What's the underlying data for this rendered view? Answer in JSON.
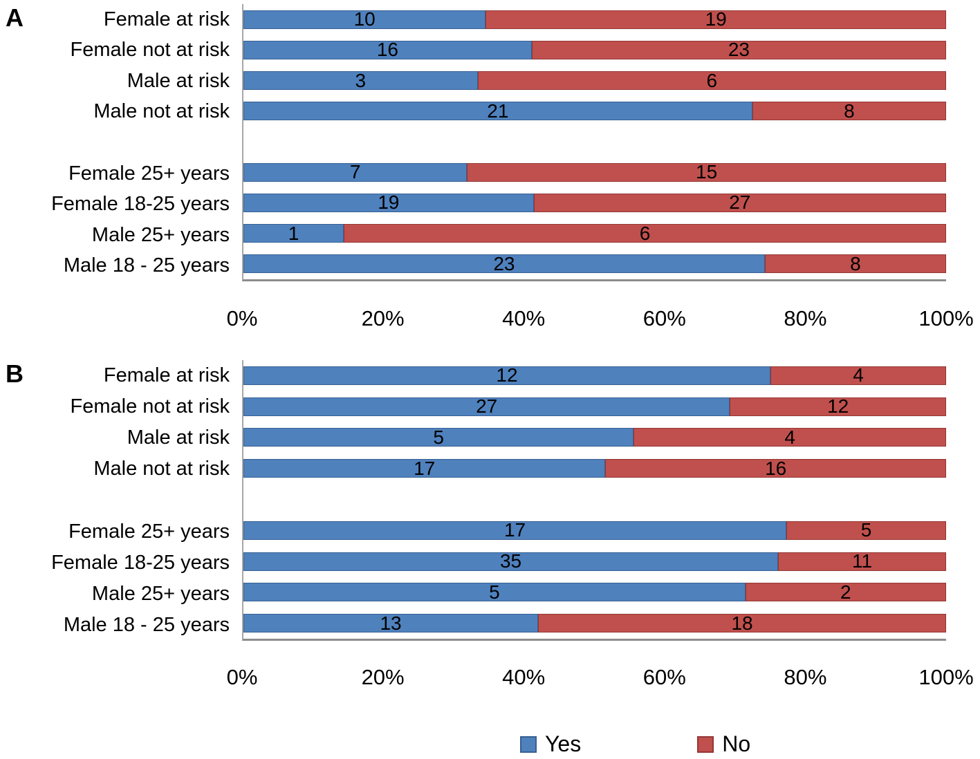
{
  "colors": {
    "yes_fill": "#4F81BD",
    "yes_border": "#366092",
    "no_fill": "#C0504D",
    "no_border": "#943634",
    "axis_line": "#A6A6A6",
    "value_text": "#000000"
  },
  "legend": {
    "position": "bottom",
    "items": [
      {
        "label": "Yes",
        "color": "#4F81BD",
        "border": "#366092"
      },
      {
        "label": "No",
        "color": "#C0504D",
        "border": "#943634"
      }
    ]
  },
  "chart_data": [
    {
      "type": "bar",
      "panel_label": "A",
      "orientation": "horizontal",
      "stacking": "percent",
      "title": "",
      "xlabel": "",
      "ylabel": "",
      "xlim": [
        0,
        100
      ],
      "grid": false,
      "categories": [
        "Female at risk",
        "Female not at risk",
        "Male at risk",
        "Male not at risk",
        "",
        "Female 25+ years",
        "Female 18-25 years",
        "Male 25+ years",
        "Male 18 - 25 years"
      ],
      "series": [
        {
          "name": "Yes",
          "values": [
            10,
            16,
            3,
            21,
            null,
            7,
            19,
            1,
            23
          ]
        },
        {
          "name": "No",
          "values": [
            19,
            23,
            6,
            8,
            null,
            15,
            27,
            6,
            8
          ]
        }
      ],
      "x_ticks": [
        "0%",
        "20%",
        "40%",
        "60%",
        "80%",
        "100%"
      ]
    },
    {
      "type": "bar",
      "panel_label": "B",
      "orientation": "horizontal",
      "stacking": "percent",
      "title": "",
      "xlabel": "",
      "ylabel": "",
      "xlim": [
        0,
        100
      ],
      "grid": false,
      "categories": [
        "Female at risk",
        "Female not at risk",
        "Male at risk",
        "Male not at risk",
        "",
        "Female 25+ years",
        "Female 18-25 years",
        "Male 25+ years",
        "Male 18 - 25 years"
      ],
      "series": [
        {
          "name": "Yes",
          "values": [
            12,
            27,
            5,
            17,
            null,
            17,
            35,
            5,
            13
          ]
        },
        {
          "name": "No",
          "values": [
            4,
            12,
            4,
            16,
            null,
            5,
            11,
            2,
            18
          ]
        }
      ],
      "x_ticks": [
        "0%",
        "20%",
        "40%",
        "60%",
        "80%",
        "100%"
      ]
    }
  ]
}
